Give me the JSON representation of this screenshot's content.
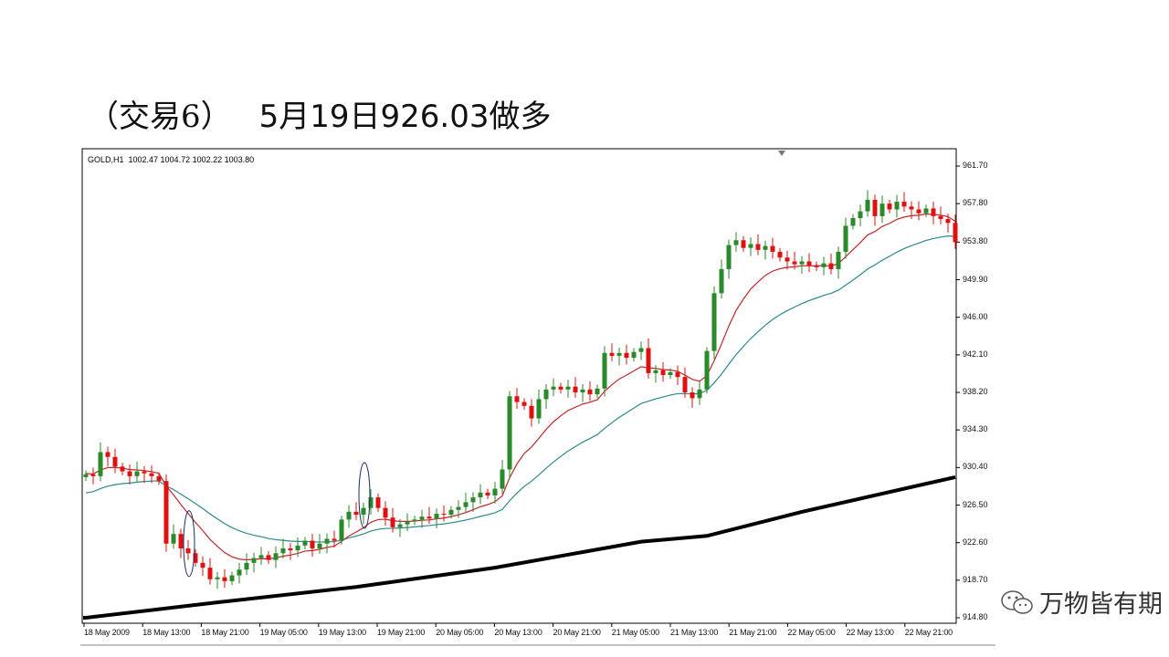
{
  "title": {
    "part1": "（交易6）",
    "part2": "5月19日926.03做多"
  },
  "watermark": {
    "text": "万物皆有期",
    "icon": "wechat-icon"
  },
  "chart_data": {
    "type": "candlestick",
    "header": "GOLD,H1  1002.47 1004.72 1002.22 1003.80",
    "ylim": [
      914.8,
      961.7
    ],
    "y_ticks": [
      "961.70",
      "957.80",
      "953.80",
      "949.90",
      "946.00",
      "942.10",
      "938.20",
      "934.30",
      "930.40",
      "926.50",
      "922.60",
      "918.70",
      "914.80"
    ],
    "y_tick_values": [
      961.7,
      957.8,
      953.8,
      949.9,
      946.0,
      942.1,
      938.2,
      934.3,
      930.4,
      926.5,
      922.6,
      918.7,
      914.8
    ],
    "x_ticks": [
      "18 May 2009",
      "18 May 13:00",
      "18 May 21:00",
      "19 May 05:00",
      "19 May 13:00",
      "19 May 21:00",
      "20 May 05:00",
      "20 May 13:00",
      "20 May 21:00",
      "21 May 05:00",
      "21 May 13:00",
      "21 May 21:00",
      "22 May 05:00",
      "22 May 13:00",
      "22 May 21:00"
    ],
    "close": [
      929.7,
      929.5,
      932,
      931.5,
      930.5,
      930,
      929.5,
      930,
      929.8,
      929.5,
      929,
      922.5,
      923.5,
      922,
      921.5,
      920.5,
      920,
      918.8,
      919,
      918.6,
      919.2,
      919.8,
      920.5,
      921,
      921.3,
      920.8,
      921.5,
      922,
      921.8,
      922.3,
      922.8,
      922.0,
      922.5,
      923,
      922.8,
      925,
      925.8,
      925.5,
      926.2,
      927.3,
      926.2,
      925.2,
      924.2,
      924.5,
      924.8,
      925,
      925.3,
      925.1,
      925.6,
      925.5,
      926,
      926.3,
      926.8,
      927.3,
      927.8,
      927.5,
      928.2,
      930.2,
      937.8,
      937.2,
      936.8,
      935.5,
      937.5,
      938.5,
      938.8,
      938.5,
      938.8,
      938.2,
      938.5,
      938,
      938.6,
      942.3,
      942,
      942.3,
      941.8,
      942.4,
      942.8,
      940.2,
      940.5,
      940,
      940.3,
      939.8,
      938.2,
      937.6,
      938.5,
      942.5,
      948.5,
      951,
      953.5,
      954,
      953.2,
      953.6,
      953,
      953.4,
      952.8,
      952.2,
      951.8,
      951.5,
      951.8,
      951.4,
      951.2,
      951.6,
      951,
      952.8,
      955.5,
      956.3,
      957,
      958.2,
      956.5,
      957.8,
      957.2,
      958,
      957.5,
      957.2,
      956.8,
      957.3,
      956.5,
      956.2,
      955.8,
      953.8
    ],
    "first_open": 929.4,
    "colors": {
      "up": "#2a8a2a",
      "down": "#e01010",
      "ma_fast": "#c0282a",
      "ma_slow": "#2b8a8a",
      "ma_long": "#000000"
    },
    "ma_fast_seed": 929.8,
    "ma_slow_seed": 927.6,
    "ma_long_points": [
      [
        0,
        914.8
      ],
      [
        18,
        916.4
      ],
      [
        37,
        918.0
      ],
      [
        56,
        920.0
      ],
      [
        76,
        922.7
      ],
      [
        85,
        923.3
      ],
      [
        98,
        925.8
      ],
      [
        119,
        929.4
      ]
    ],
    "annotations": [
      {
        "type": "ellipse",
        "candle": 14,
        "price": 922.5
      },
      {
        "type": "ellipse",
        "candle": 38,
        "price": 927.5
      }
    ]
  }
}
